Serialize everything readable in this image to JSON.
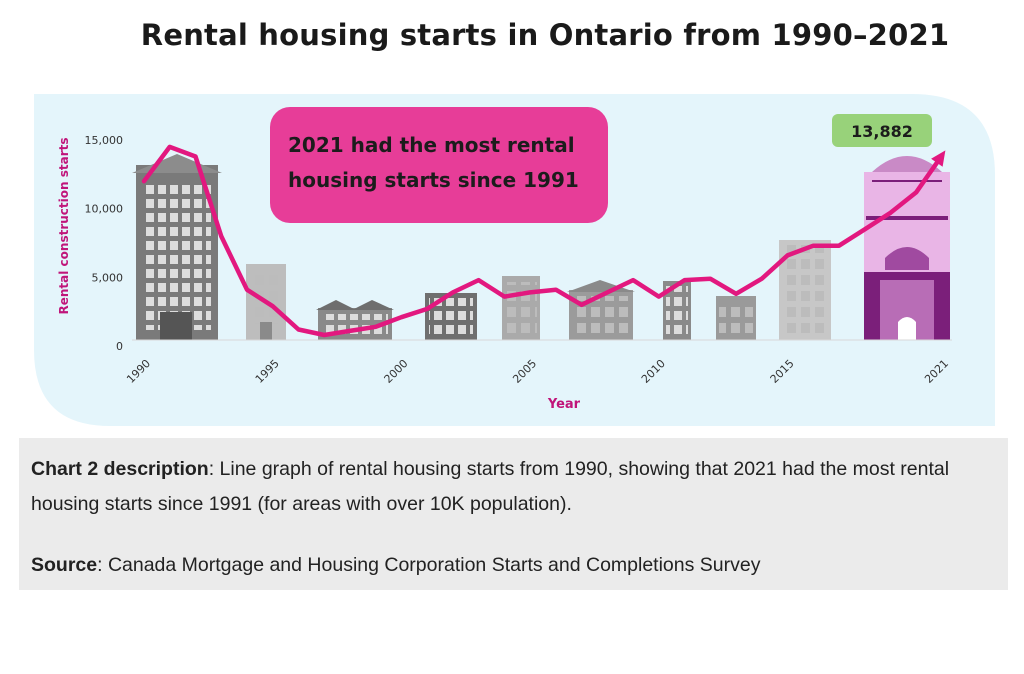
{
  "page_title": "Rental housing starts in Ontario from 1990–2021",
  "chart_data": {
    "type": "line",
    "title": "Rental housing starts in Ontario from 1990–2021",
    "xlabel": "Year",
    "ylabel": "Rental construction starts",
    "xlim": [
      1990,
      2021
    ],
    "ylim": [
      0,
      15000
    ],
    "x_tick_labels": [
      "1990",
      "1995",
      "2000",
      "2005",
      "2010",
      "2015",
      "2021"
    ],
    "y_tick_labels": [
      "0",
      "5,000",
      "10,000",
      "15,000"
    ],
    "series": [
      {
        "x": [
          1990,
          1991,
          1992,
          1993,
          1994,
          1995,
          1996,
          1997,
          1998,
          1999,
          2000,
          2001,
          2002,
          2003,
          2004,
          2005,
          2006,
          2007,
          2008,
          2009,
          2010,
          2011,
          2012,
          2013,
          2014,
          2015,
          2016,
          2017,
          2018,
          2019,
          2020,
          2021
        ],
        "y": [
          12000,
          14500,
          13800,
          8000,
          4100,
          2900,
          1200,
          800,
          1100,
          1400,
          2100,
          2700,
          3900,
          4800,
          3600,
          3900,
          4100,
          3000,
          3900,
          4800,
          3600,
          4800,
          4900,
          3800,
          4900,
          6600,
          7300,
          7300,
          8500,
          9700,
          11200,
          13882
        ]
      }
    ],
    "callout": "2021 had the most rental housing starts since 1991",
    "value_label": "13,882",
    "colors": {
      "line": "#e2187f",
      "callout_bg": "#e73d98",
      "value_badge": "#98d27a",
      "panel_bg": "#e4f5fb",
      "axis_label": "#c0157a"
    },
    "decorations": [
      "apartment-building-icons"
    ]
  },
  "description": {
    "label": "Chart 2 description",
    "text": ": Line graph of rental housing starts from 1990, showing that 2021 had the most rental housing starts since 1991 (for areas with over 10K population)."
  },
  "source": {
    "label": "Source",
    "text": ": Canada Mortgage and Housing Corporation Starts and Completions Survey"
  }
}
